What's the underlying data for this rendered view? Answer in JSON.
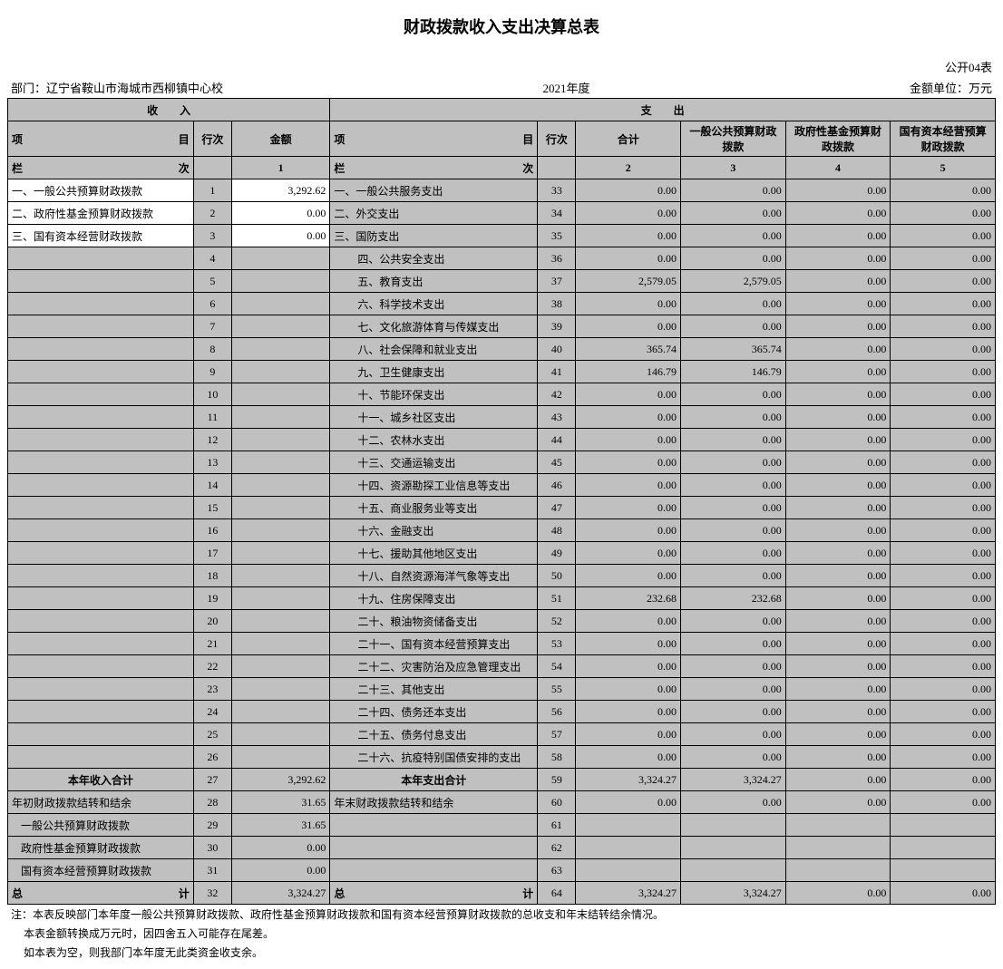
{
  "title": "财政拨款收入支出决算总表",
  "form_no": "公开04表",
  "dept_label": "部门：",
  "dept": "辽宁省鞍山市海城市西柳镇中心校",
  "year": "2021年度",
  "unit": "金额单位：万元",
  "headers": {
    "income": "收　　入",
    "expense": "支　　出",
    "item": "项　　　　　　　　　　目",
    "rownum": "行次",
    "amount": "金额",
    "col_label": "栏　　　　　　　　　　次",
    "total": "合计",
    "c3": "一般公共预算财政拨款",
    "c4": "政府性基金预算财政拨款",
    "c5": "国有资本经营预算财政拨款"
  },
  "col_nums": {
    "c1": "1",
    "c2": "2",
    "c3": "3",
    "c4": "4",
    "c5": "5"
  },
  "income_rows": [
    {
      "label": "一、一般公共预算财政拨款",
      "row": "1",
      "amt": "3,292.62",
      "grey": false
    },
    {
      "label": "二、政府性基金预算财政拨款",
      "row": "2",
      "amt": "0.00",
      "grey": false
    },
    {
      "label": "三、国有资本经营财政拨款",
      "row": "3",
      "amt": "0.00",
      "grey": false
    },
    {
      "label": "",
      "row": "4",
      "amt": "",
      "grey": true
    },
    {
      "label": "",
      "row": "5",
      "amt": "",
      "grey": true
    },
    {
      "label": "",
      "row": "6",
      "amt": "",
      "grey": true
    },
    {
      "label": "",
      "row": "7",
      "amt": "",
      "grey": true
    },
    {
      "label": "",
      "row": "8",
      "amt": "",
      "grey": true
    },
    {
      "label": "",
      "row": "9",
      "amt": "",
      "grey": true
    },
    {
      "label": "",
      "row": "10",
      "amt": "",
      "grey": true
    },
    {
      "label": "",
      "row": "11",
      "amt": "",
      "grey": true
    },
    {
      "label": "",
      "row": "12",
      "amt": "",
      "grey": true
    },
    {
      "label": "",
      "row": "13",
      "amt": "",
      "grey": true
    },
    {
      "label": "",
      "row": "14",
      "amt": "",
      "grey": true
    },
    {
      "label": "",
      "row": "15",
      "amt": "",
      "grey": true
    },
    {
      "label": "",
      "row": "16",
      "amt": "",
      "grey": true
    },
    {
      "label": "",
      "row": "17",
      "amt": "",
      "grey": true
    },
    {
      "label": "",
      "row": "18",
      "amt": "",
      "grey": true
    },
    {
      "label": "",
      "row": "19",
      "amt": "",
      "grey": true
    },
    {
      "label": "",
      "row": "20",
      "amt": "",
      "grey": true
    },
    {
      "label": "",
      "row": "21",
      "amt": "",
      "grey": true
    },
    {
      "label": "",
      "row": "22",
      "amt": "",
      "grey": true
    },
    {
      "label": "",
      "row": "23",
      "amt": "",
      "grey": true
    },
    {
      "label": "",
      "row": "24",
      "amt": "",
      "grey": true
    },
    {
      "label": "",
      "row": "25",
      "amt": "",
      "grey": true
    },
    {
      "label": "",
      "row": "26",
      "amt": "",
      "grey": true
    }
  ],
  "expense_rows": [
    {
      "label": "一、一般公共服务支出",
      "row": "33",
      "v": [
        "0.00",
        "0.00",
        "0.00",
        "0.00"
      ]
    },
    {
      "label": "二、外交支出",
      "row": "34",
      "v": [
        "0.00",
        "0.00",
        "0.00",
        "0.00"
      ]
    },
    {
      "label": "三、国防支出",
      "row": "35",
      "v": [
        "0.00",
        "0.00",
        "0.00",
        "0.00"
      ]
    },
    {
      "label": "四、公共安全支出",
      "row": "36",
      "v": [
        "0.00",
        "0.00",
        "0.00",
        "0.00"
      ],
      "indent": true
    },
    {
      "label": "五、教育支出",
      "row": "37",
      "v": [
        "2,579.05",
        "2,579.05",
        "0.00",
        "0.00"
      ],
      "indent": true
    },
    {
      "label": "六、科学技术支出",
      "row": "38",
      "v": [
        "0.00",
        "0.00",
        "0.00",
        "0.00"
      ],
      "indent": true
    },
    {
      "label": "七、文化旅游体育与传媒支出",
      "row": "39",
      "v": [
        "0.00",
        "0.00",
        "0.00",
        "0.00"
      ],
      "indent": true
    },
    {
      "label": "八、社会保障和就业支出",
      "row": "40",
      "v": [
        "365.74",
        "365.74",
        "0.00",
        "0.00"
      ],
      "indent": true
    },
    {
      "label": "九、卫生健康支出",
      "row": "41",
      "v": [
        "146.79",
        "146.79",
        "0.00",
        "0.00"
      ],
      "indent": true
    },
    {
      "label": "十、节能环保支出",
      "row": "42",
      "v": [
        "0.00",
        "0.00",
        "0.00",
        "0.00"
      ],
      "indent": true
    },
    {
      "label": "十一、城乡社区支出",
      "row": "43",
      "v": [
        "0.00",
        "0.00",
        "0.00",
        "0.00"
      ],
      "indent": true
    },
    {
      "label": "十二、农林水支出",
      "row": "44",
      "v": [
        "0.00",
        "0.00",
        "0.00",
        "0.00"
      ],
      "indent": true
    },
    {
      "label": "十三、交通运输支出",
      "row": "45",
      "v": [
        "0.00",
        "0.00",
        "0.00",
        "0.00"
      ],
      "indent": true
    },
    {
      "label": "十四、资源勘探工业信息等支出",
      "row": "46",
      "v": [
        "0.00",
        "0.00",
        "0.00",
        "0.00"
      ],
      "indent": true
    },
    {
      "label": "十五、商业服务业等支出",
      "row": "47",
      "v": [
        "0.00",
        "0.00",
        "0.00",
        "0.00"
      ],
      "indent": true
    },
    {
      "label": "十六、金融支出",
      "row": "48",
      "v": [
        "0.00",
        "0.00",
        "0.00",
        "0.00"
      ],
      "indent": true
    },
    {
      "label": "十七、援助其他地区支出",
      "row": "49",
      "v": [
        "0.00",
        "0.00",
        "0.00",
        "0.00"
      ],
      "indent": true
    },
    {
      "label": "十八、自然资源海洋气象等支出",
      "row": "50",
      "v": [
        "0.00",
        "0.00",
        "0.00",
        "0.00"
      ],
      "indent": true
    },
    {
      "label": "十九、住房保障支出",
      "row": "51",
      "v": [
        "232.68",
        "232.68",
        "0.00",
        "0.00"
      ],
      "indent": true
    },
    {
      "label": "二十、粮油物资储备支出",
      "row": "52",
      "v": [
        "0.00",
        "0.00",
        "0.00",
        "0.00"
      ],
      "indent": true
    },
    {
      "label": "二十一、国有资本经营预算支出",
      "row": "53",
      "v": [
        "0.00",
        "0.00",
        "0.00",
        "0.00"
      ],
      "indent": true
    },
    {
      "label": "二十二、灾害防治及应急管理支出",
      "row": "54",
      "v": [
        "0.00",
        "0.00",
        "0.00",
        "0.00"
      ],
      "indent": true
    },
    {
      "label": "二十三、其他支出",
      "row": "55",
      "v": [
        "0.00",
        "0.00",
        "0.00",
        "0.00"
      ],
      "indent": true
    },
    {
      "label": "二十四、债务还本支出",
      "row": "56",
      "v": [
        "0.00",
        "0.00",
        "0.00",
        "0.00"
      ],
      "indent": true
    },
    {
      "label": "二十五、债务付息支出",
      "row": "57",
      "v": [
        "0.00",
        "0.00",
        "0.00",
        "0.00"
      ],
      "indent": true
    },
    {
      "label": "二十六、抗疫特别国债安排的支出",
      "row": "58",
      "v": [
        "0.00",
        "0.00",
        "0.00",
        "0.00"
      ],
      "indent": true
    }
  ],
  "subtotal": {
    "in_label": "本年收入合计",
    "in_row": "27",
    "in_amt": "3,292.62",
    "ex_label": "本年支出合计",
    "ex_row": "59",
    "ex_v": [
      "3,324.27",
      "3,324.27",
      "0.00",
      "0.00"
    ]
  },
  "carry_rows": [
    {
      "in_label": "年初财政拨款结转和结余",
      "in_row": "28",
      "in_amt": "31.65",
      "ex_label": "年末财政拨款结转和结余",
      "ex_row": "60",
      "ex_v": [
        "0.00",
        "0.00",
        "0.00",
        "0.00"
      ]
    },
    {
      "in_label": "一般公共预算财政拨款",
      "in_row": "29",
      "in_amt": "31.65",
      "ex_label": "",
      "ex_row": "61",
      "ex_v": [
        "",
        "",
        "",
        ""
      ],
      "in_indent": true
    },
    {
      "in_label": "政府性基金预算财政拨款",
      "in_row": "30",
      "in_amt": "0.00",
      "ex_label": "",
      "ex_row": "62",
      "ex_v": [
        "",
        "",
        "",
        ""
      ],
      "in_indent": true
    },
    {
      "in_label": "国有资本经营预算财政拨款",
      "in_row": "31",
      "in_amt": "0.00",
      "ex_label": "",
      "ex_row": "63",
      "ex_v": [
        "",
        "",
        "",
        ""
      ],
      "in_indent": true
    }
  ],
  "grand": {
    "in_label": "总　　　　　　　　　　计",
    "in_row": "32",
    "in_amt": "3,324.27",
    "ex_label": "总　　　　　　　　　　计",
    "ex_row": "64",
    "ex_v": [
      "3,324.27",
      "3,324.27",
      "0.00",
      "0.00"
    ]
  },
  "notes": [
    "注：本表反映部门本年度一般公共预算财政拨款、政府性基金预算财政拨款和国有资本经营预算财政拨款的总收支和年末结转结余情况。",
    "本表金额转换成万元时，因四舍五入可能存在尾差。",
    "如本表为空，则我部门本年度无此类资金收支余。"
  ]
}
